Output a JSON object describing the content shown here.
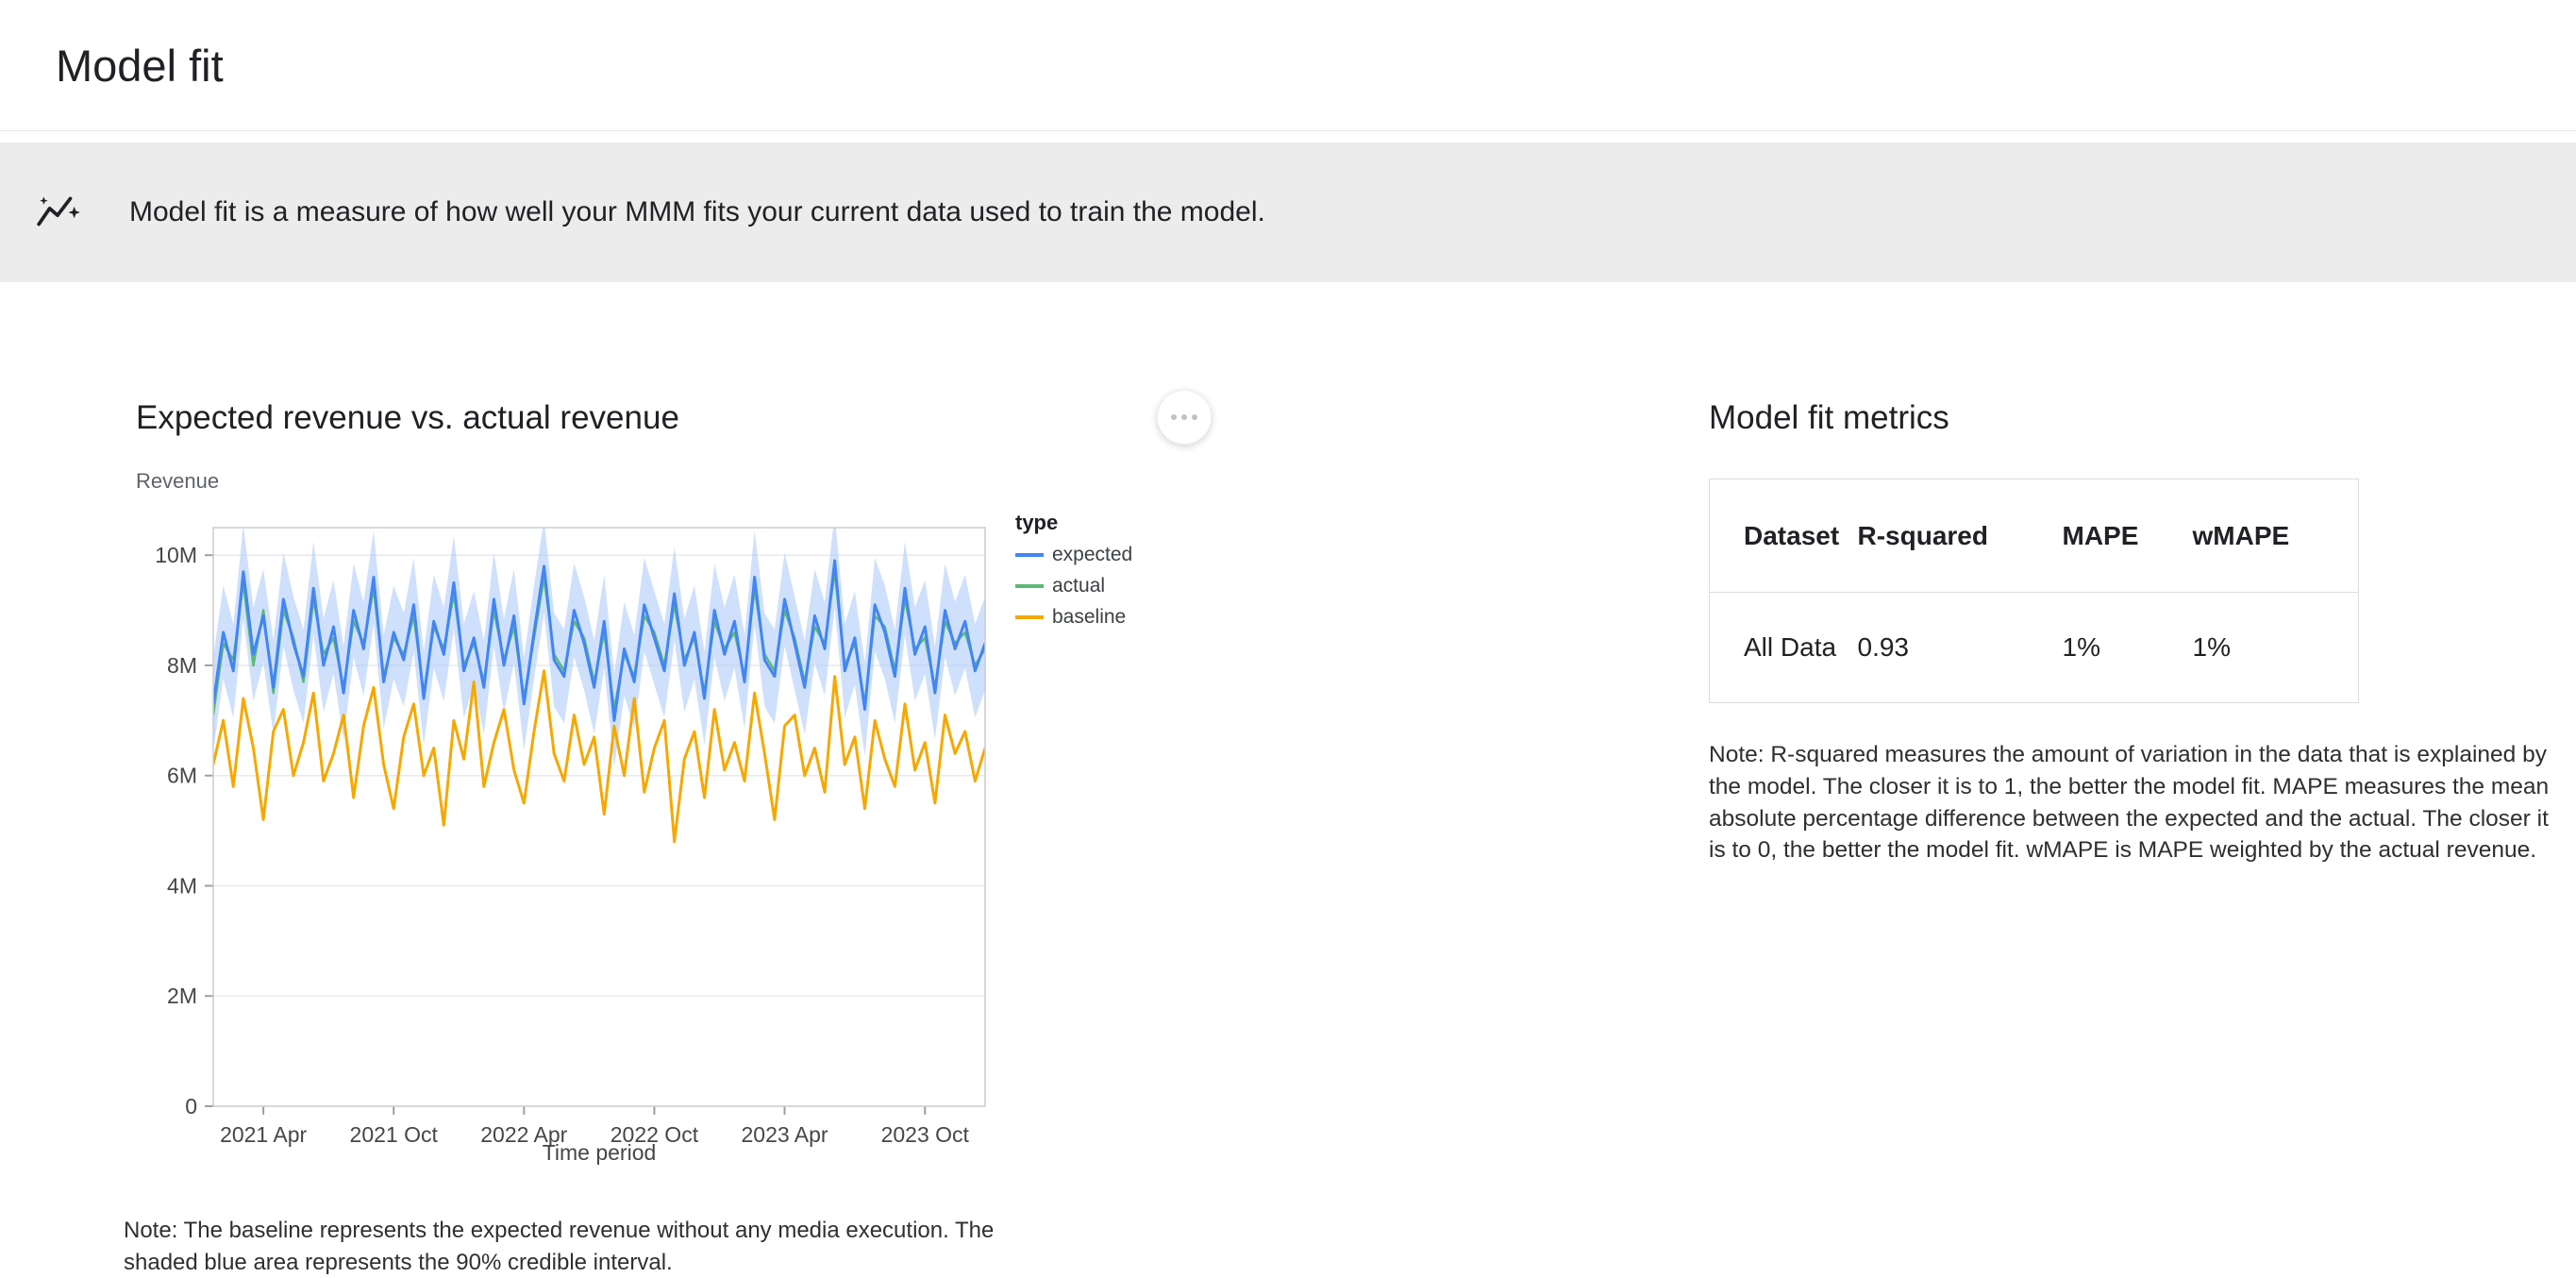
{
  "page": {
    "title": "Model fit"
  },
  "banner": {
    "icon": "insights-icon",
    "text": "Model fit is a measure of how well your MMM fits your current data used to train the model."
  },
  "chart_section": {
    "title": "Expected revenue vs. actual revenue",
    "y_axis_title": "Revenue",
    "note": "Note: The baseline represents the expected revenue without any media execution. The shaded blue area represents the 90% credible interval."
  },
  "chart_data": {
    "type": "line",
    "title": "Expected revenue vs. actual revenue",
    "xlabel": "Time period",
    "ylabel": "Revenue",
    "grid": true,
    "legend_position": "right",
    "y_tick_labels": [
      "0",
      "2M",
      "4M",
      "6M",
      "8M",
      "10M"
    ],
    "y_tick_values_m": [
      0,
      2,
      4,
      6,
      8,
      10
    ],
    "ylim_m": [
      0,
      10.5
    ],
    "x_tick_labels": [
      "2021 Apr",
      "2021 Oct",
      "2022 Apr",
      "2022 Oct",
      "2023 Apr",
      "2023 Oct"
    ],
    "x_ticks_at_index": [
      5,
      18,
      31,
      44,
      57,
      71
    ],
    "legend": {
      "title": "type",
      "entries": [
        {
          "label": "expected",
          "color": "#4285f4"
        },
        {
          "label": "actual",
          "color": "#5bb974"
        },
        {
          "label": "baseline",
          "color": "#f5a800"
        }
      ]
    },
    "credible_interval": {
      "label": "90% credible interval",
      "halfwidth_m": 0.85,
      "fill": "#a8c7fa",
      "opacity": 0.55
    },
    "series": [
      {
        "name": "expected",
        "color": "#4285f4",
        "stroke_width": 3,
        "values_m": [
          7.3,
          8.6,
          7.9,
          9.7,
          8.2,
          8.9,
          7.6,
          9.2,
          8.4,
          7.8,
          9.4,
          8.0,
          8.7,
          7.5,
          9.0,
          8.3,
          9.6,
          7.7,
          8.6,
          8.1,
          9.1,
          7.4,
          8.8,
          8.2,
          9.5,
          7.9,
          8.5,
          7.6,
          9.2,
          8.0,
          8.9,
          7.3,
          8.6,
          9.8,
          8.1,
          7.8,
          9.0,
          8.4,
          7.6,
          8.8,
          7.0,
          8.3,
          7.7,
          9.1,
          8.5,
          7.9,
          9.3,
          8.0,
          8.6,
          7.4,
          9.0,
          8.2,
          8.8,
          7.7,
          9.6,
          8.1,
          7.8,
          9.2,
          8.4,
          7.6,
          8.9,
          8.3,
          9.9,
          7.9,
          8.5,
          7.2,
          9.1,
          8.6,
          7.8,
          9.4,
          8.2,
          8.7,
          7.5,
          9.0,
          8.3,
          8.8,
          7.9,
          8.4
        ]
      },
      {
        "name": "actual",
        "color": "#5bb974",
        "stroke_width": 2.5,
        "values_m": [
          7.1,
          8.4,
          8.1,
          9.5,
          8.0,
          9.0,
          7.5,
          9.0,
          8.5,
          7.7,
          9.2,
          8.2,
          8.5,
          7.6,
          8.8,
          8.4,
          9.4,
          7.8,
          8.5,
          8.2,
          8.9,
          7.5,
          8.7,
          8.3,
          9.3,
          8.0,
          8.4,
          7.7,
          9.0,
          8.1,
          8.7,
          7.4,
          8.5,
          9.6,
          8.2,
          7.9,
          8.8,
          8.5,
          7.7,
          8.6,
          7.2,
          8.2,
          7.8,
          8.9,
          8.6,
          8.0,
          9.1,
          8.1,
          8.5,
          7.5,
          8.8,
          8.3,
          8.6,
          7.8,
          9.4,
          8.2,
          7.9,
          9.0,
          8.5,
          7.7,
          8.7,
          8.4,
          9.7,
          8.0,
          8.4,
          7.3,
          8.9,
          8.7,
          7.9,
          9.2,
          8.3,
          8.5,
          7.6,
          8.8,
          8.4,
          8.6,
          8.0,
          8.3
        ]
      },
      {
        "name": "baseline",
        "color": "#f5a800",
        "stroke_width": 3,
        "values_m": [
          6.2,
          7.0,
          5.8,
          7.4,
          6.5,
          5.2,
          6.8,
          7.2,
          6.0,
          6.6,
          7.5,
          5.9,
          6.4,
          7.1,
          5.6,
          6.9,
          7.6,
          6.2,
          5.4,
          6.7,
          7.3,
          6.0,
          6.5,
          5.1,
          7.0,
          6.3,
          7.7,
          5.8,
          6.6,
          7.2,
          6.1,
          5.5,
          6.8,
          7.9,
          6.4,
          5.9,
          7.1,
          6.2,
          6.7,
          5.3,
          6.9,
          6.0,
          7.4,
          5.7,
          6.5,
          7.0,
          4.8,
          6.3,
          6.8,
          5.6,
          7.2,
          6.1,
          6.6,
          5.9,
          7.5,
          6.4,
          5.2,
          6.9,
          7.1,
          6.0,
          6.5,
          5.7,
          7.8,
          6.2,
          6.7,
          5.4,
          7.0,
          6.3,
          5.8,
          7.3,
          6.1,
          6.6,
          5.5,
          7.1,
          6.4,
          6.8,
          5.9,
          6.5
        ]
      }
    ]
  },
  "metrics_section": {
    "title": "Model fit metrics",
    "table": {
      "headers": [
        "Dataset",
        "R-squared",
        "MAPE",
        "wMAPE"
      ],
      "rows": [
        [
          "All Data",
          "0.93",
          "1%",
          "1%"
        ]
      ]
    },
    "note": "Note: R-squared measures the amount of variation in the data that is explained by the model. The closer it is to 1, the better the model fit. MAPE measures the mean absolute percentage difference between the expected and the actual. The closer it is to 0, the better the model fit. wMAPE is MAPE weighted by the actual revenue."
  }
}
